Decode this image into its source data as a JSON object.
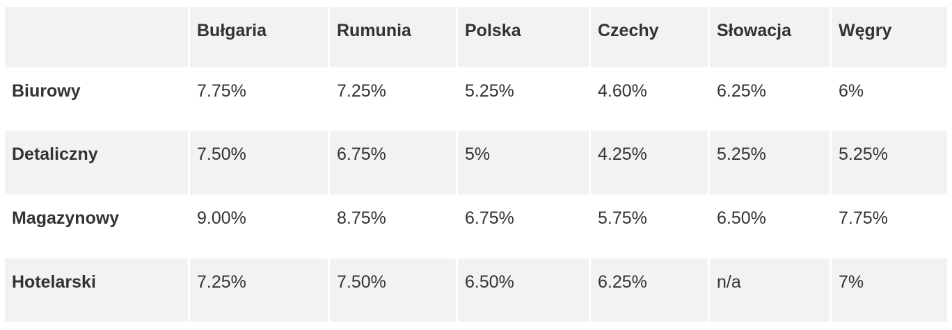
{
  "table": {
    "columns": [
      "Bułgaria",
      "Rumunia",
      "Polska",
      "Czechy",
      "Słowacja",
      "Węgry"
    ],
    "rows": [
      {
        "label": "Biurowy",
        "values": [
          "7.75%",
          "7.25%",
          "5.25%",
          "4.60%",
          "6.25%",
          "6%"
        ]
      },
      {
        "label": "Detaliczny",
        "values": [
          "7.50%",
          "6.75%",
          "5%",
          "4.25%",
          "5.25%",
          "5.25%"
        ]
      },
      {
        "label": "Magazynowy",
        "values": [
          "9.00%",
          "8.75%",
          "6.75%",
          "5.75%",
          "6.50%",
          "7.75%"
        ]
      },
      {
        "label": "Hotelarski",
        "values": [
          "7.25%",
          "7.50%",
          "6.50%",
          "6.25%",
          "n/a",
          "7%"
        ]
      }
    ]
  }
}
